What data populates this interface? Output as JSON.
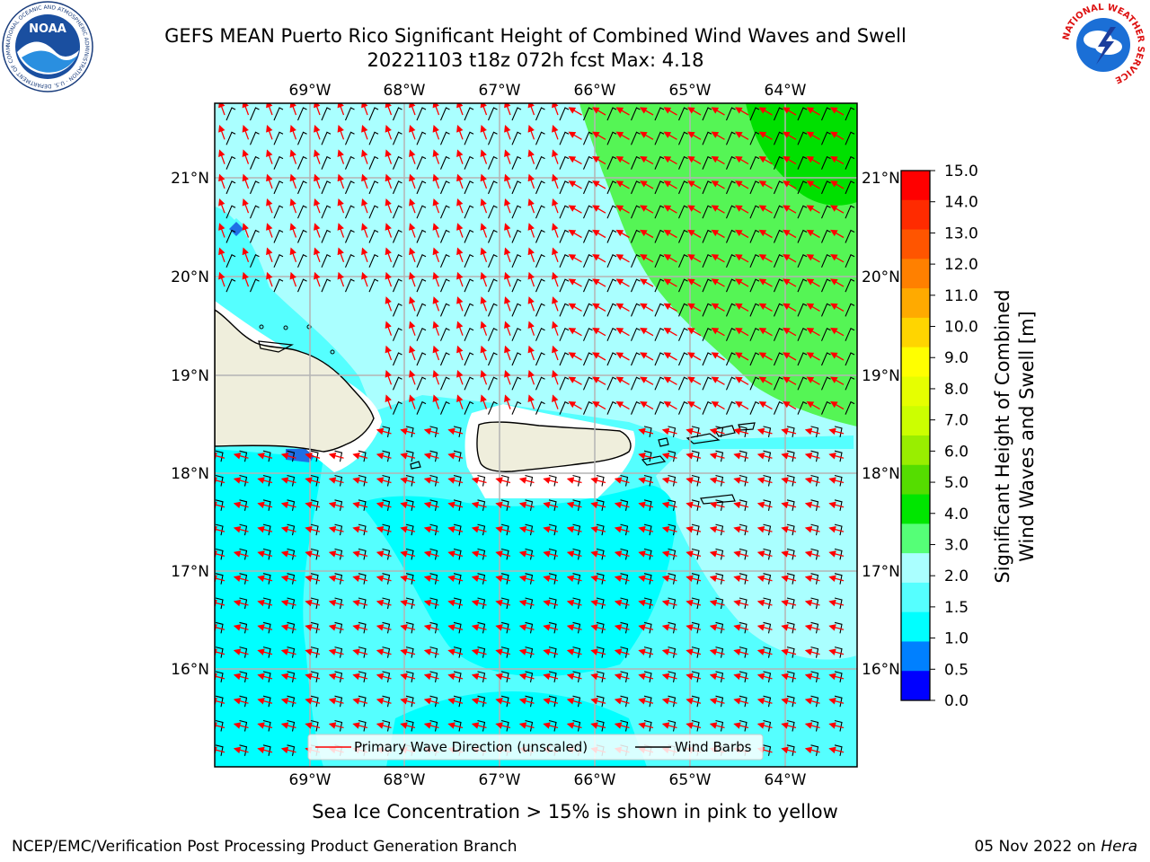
{
  "title_line1": "GEFS MEAN Puerto Rico Significant Height of Combined Wind Waves and Swell",
  "title_line2": "20221103 t18z 072h fcst   Max: 4.18",
  "subtitle": "Sea Ice Concentration > 15% is shown in pink to yellow",
  "footer_left": "NCEP/EMC/Verification Post Processing Product Generation Branch",
  "footer_right_date": "05 Nov 2022 on ",
  "footer_right_host": "Hera",
  "logos": {
    "noaa_text": "NOAA",
    "noaa_ring": "NATIONAL OCEANIC AND ATMOSPHERIC ADMINISTRATION · U.S. DEPARTMENT OF COMMERCE",
    "nws_ring": "NATIONAL WEATHER SERVICE"
  },
  "map": {
    "lon_labels": [
      "69°W",
      "68°W",
      "67°W",
      "66°W",
      "65°W",
      "64°W"
    ],
    "lat_labels": [
      "21°N",
      "20°N",
      "19°N",
      "18°N",
      "17°N",
      "16°N"
    ],
    "legend": {
      "wave_direction": "Primary Wave Direction (unscaled)",
      "wind_barbs": "Wind Barbs"
    }
  },
  "colorbar": {
    "label_line1": "Significant Height of Combined",
    "label_line2": "Wind Waves and Swell [m]",
    "ticks": [
      "15.0",
      "14.0",
      "13.0",
      "12.0",
      "11.0",
      "10.0",
      "9.0",
      "8.0",
      "7.0",
      "6.0",
      "5.0",
      "4.0",
      "3.0",
      "2.0",
      "1.5",
      "1.0",
      "0.5",
      "0.0"
    ],
    "colors": [
      "#ff0000",
      "#ff2b00",
      "#ff5500",
      "#ff8000",
      "#ffaa00",
      "#ffd500",
      "#ffff00",
      "#e6ff00",
      "#ccff00",
      "#99ee00",
      "#55dd00",
      "#00e600",
      "#55ff77",
      "#aaffff",
      "#55ffff",
      "#00ffff",
      "#0080ff",
      "#0000ff"
    ]
  },
  "colors": {
    "land": "#efeedc",
    "high_waves": "#55f555",
    "highest_waves": "#00e000",
    "mid_waves": "#aaffff",
    "low_waves": "#55ffff",
    "lowest_waves": "#00ffff",
    "arrow": "#ff0000",
    "barb": "#000000"
  }
}
